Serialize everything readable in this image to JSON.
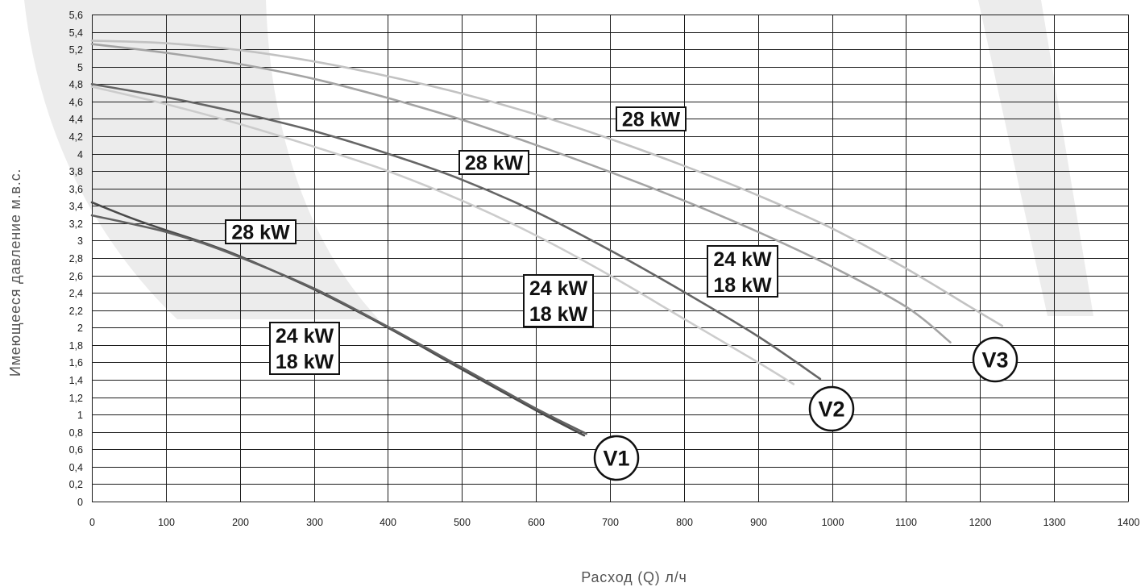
{
  "chart_data": {
    "type": "line",
    "xlabel": "Расход (Q) л/ч",
    "ylabel": "Имеющееся давление м.в.с.",
    "xlim": [
      0,
      1400
    ],
    "ylim": [
      0,
      5.6
    ],
    "grid": true,
    "x_ticks": [
      "0",
      "100",
      "200",
      "300",
      "400",
      "500",
      "600",
      "700",
      "800",
      "900",
      "1000",
      "1100",
      "1200",
      "1300",
      "1400"
    ],
    "y_ticks": [
      "0",
      "0,2",
      "0,4",
      "0,6",
      "0,8",
      "1",
      "1,2",
      "1,4",
      "1,6",
      "1,8",
      "2",
      "2,2",
      "2,4",
      "2,6",
      "2,8",
      "3",
      "3,2",
      "3,4",
      "3,6",
      "3,8",
      "4",
      "4,2",
      "4,4",
      "4,6",
      "4,8",
      "5",
      "5,2",
      "5,4",
      "5,6"
    ],
    "groups": [
      {
        "speed": "V1",
        "series": [
          {
            "labels": [
              "28 kW"
            ],
            "color": "#4a4a4a",
            "points": [
              [
                0,
                3.44
              ],
              [
                50,
                3.27
              ],
              [
                100,
                3.12
              ],
              [
                150,
                2.98
              ],
              [
                200,
                2.82
              ],
              [
                300,
                2.44
              ],
              [
                400,
                2.0
              ],
              [
                500,
                1.52
              ],
              [
                600,
                1.05
              ],
              [
                665,
                0.76
              ]
            ]
          },
          {
            "labels": [
              "24 kW",
              "18 kW"
            ],
            "color": "#626262",
            "points": [
              [
                0,
                3.29
              ],
              [
                50,
                3.2
              ],
              [
                100,
                3.1
              ],
              [
                150,
                2.97
              ],
              [
                200,
                2.81
              ],
              [
                300,
                2.45
              ],
              [
                400,
                2.01
              ],
              [
                500,
                1.54
              ],
              [
                600,
                1.07
              ],
              [
                668,
                0.78
              ]
            ]
          }
        ]
      },
      {
        "speed": "V2",
        "series": [
          {
            "labels": [
              "28 kW"
            ],
            "color": "#666666",
            "points": [
              [
                0,
                4.8
              ],
              [
                100,
                4.65
              ],
              [
                200,
                4.47
              ],
              [
                300,
                4.26
              ],
              [
                400,
                4.0
              ],
              [
                500,
                3.7
              ],
              [
                600,
                3.33
              ],
              [
                700,
                2.89
              ],
              [
                800,
                2.41
              ],
              [
                900,
                1.9
              ],
              [
                984,
                1.41
              ]
            ]
          },
          {
            "labels": [
              "24 kW",
              "18 kW"
            ],
            "color": "#cccccc",
            "points": [
              [
                0,
                4.77
              ],
              [
                100,
                4.57
              ],
              [
                200,
                4.34
              ],
              [
                300,
                4.08
              ],
              [
                400,
                3.8
              ],
              [
                500,
                3.46
              ],
              [
                600,
                3.06
              ],
              [
                700,
                2.6
              ],
              [
                800,
                2.1
              ],
              [
                900,
                1.6
              ],
              [
                948,
                1.35
              ]
            ]
          }
        ]
      },
      {
        "speed": "V3",
        "series": [
          {
            "labels": [
              "28 kW"
            ],
            "color": "#c2c2c2",
            "points": [
              [
                0,
                5.3
              ],
              [
                100,
                5.27
              ],
              [
                200,
                5.19
              ],
              [
                300,
                5.06
              ],
              [
                400,
                4.89
              ],
              [
                500,
                4.69
              ],
              [
                600,
                4.45
              ],
              [
                700,
                4.17
              ],
              [
                800,
                3.86
              ],
              [
                900,
                3.52
              ],
              [
                1000,
                3.14
              ],
              [
                1100,
                2.68
              ],
              [
                1200,
                2.17
              ],
              [
                1230,
                2.02
              ]
            ]
          },
          {
            "labels": [
              "24 kW",
              "18 kW"
            ],
            "color": "#a4a4a4",
            "points": [
              [
                0,
                5.26
              ],
              [
                100,
                5.16
              ],
              [
                200,
                5.03
              ],
              [
                300,
                4.86
              ],
              [
                400,
                4.64
              ],
              [
                500,
                4.39
              ],
              [
                600,
                4.1
              ],
              [
                700,
                3.79
              ],
              [
                800,
                3.46
              ],
              [
                900,
                3.1
              ],
              [
                1000,
                2.7
              ],
              [
                1100,
                2.24
              ],
              [
                1160,
                1.83
              ]
            ]
          }
        ]
      }
    ]
  }
}
